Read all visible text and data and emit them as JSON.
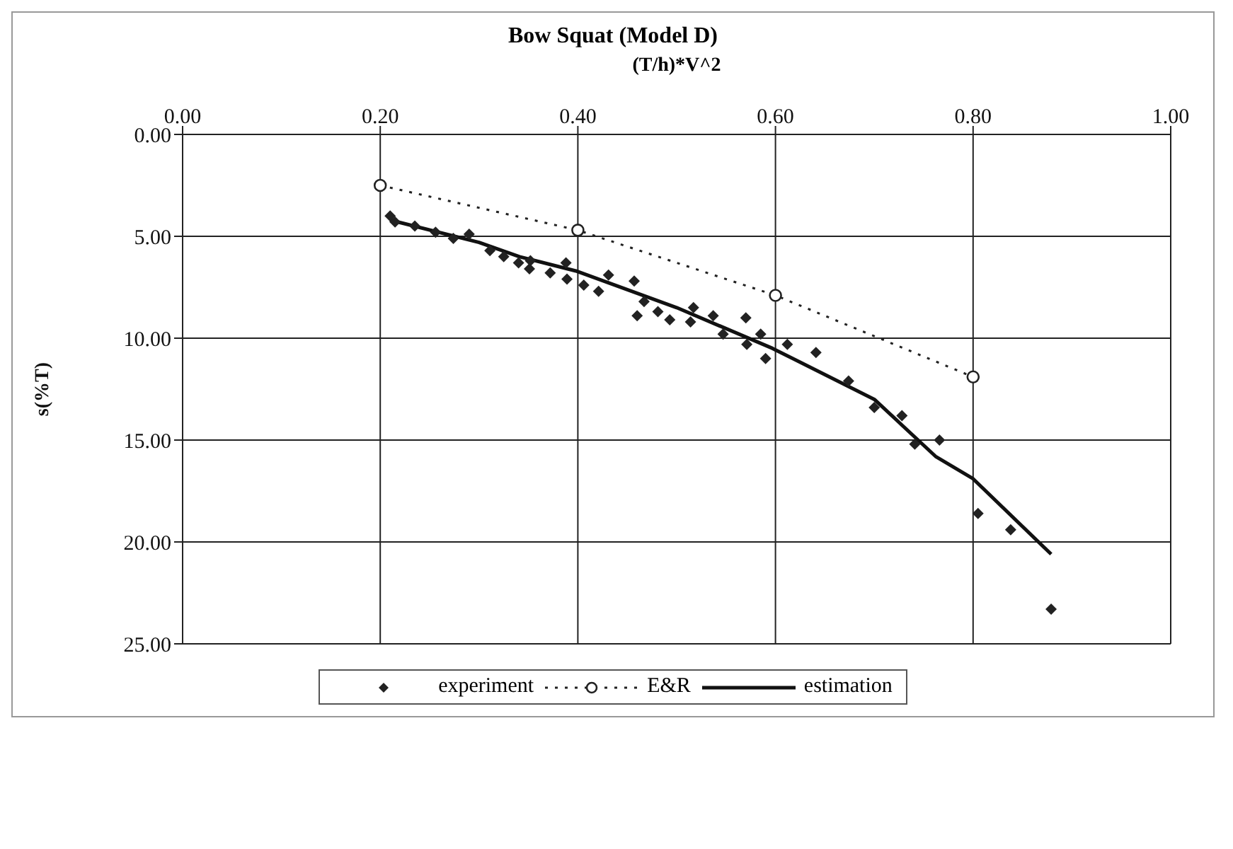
{
  "chart_data": {
    "type": "scatter",
    "title": "Bow Squat (Model D)",
    "xlabel": "(T/h)*V^2",
    "ylabel": "s(%T)",
    "xlim": [
      0,
      1
    ],
    "xticks": [
      {
        "value": 0,
        "label": "0.00"
      },
      {
        "value": 0.2,
        "label": "0.20"
      },
      {
        "value": 0.4,
        "label": "0.40"
      },
      {
        "value": 0.6,
        "label": "0.60"
      },
      {
        "value": 0.8,
        "label": "0.80"
      },
      {
        "value": 1,
        "label": "1.00"
      }
    ],
    "ylim": [
      25,
      0
    ],
    "yticks": [
      {
        "value": 0,
        "label": "0.00"
      },
      {
        "value": 5,
        "label": "5.00"
      },
      {
        "value": 10,
        "label": "10.00"
      },
      {
        "value": 15,
        "label": "15.00"
      },
      {
        "value": 20,
        "label": "20.00"
      },
      {
        "value": 25,
        "label": "25.00"
      }
    ],
    "grid": true,
    "legend": "bottom",
    "series": [
      {
        "name": "experiment",
        "marker": "diamond",
        "color": "#222222",
        "x": [
          0.21,
          0.215,
          0.235,
          0.256,
          0.274,
          0.29,
          0.311,
          0.325,
          0.34,
          0.351,
          0.352,
          0.372,
          0.388,
          0.389,
          0.406,
          0.421,
          0.431,
          0.457,
          0.46,
          0.467,
          0.481,
          0.493,
          0.514,
          0.517,
          0.537,
          0.547,
          0.57,
          0.571,
          0.585,
          0.59,
          0.612,
          0.641,
          0.674,
          0.7,
          0.728,
          0.741,
          0.766,
          0.805,
          0.838,
          0.879
        ],
        "values": [
          4.0,
          4.3,
          4.5,
          4.8,
          5.1,
          4.9,
          5.7,
          6.0,
          6.3,
          6.6,
          6.2,
          6.8,
          6.3,
          7.1,
          7.4,
          7.7,
          6.9,
          7.2,
          8.9,
          8.2,
          8.7,
          9.1,
          9.2,
          8.5,
          8.9,
          9.8,
          9.0,
          10.3,
          9.8,
          11.0,
          10.3,
          10.7,
          12.1,
          13.4,
          13.8,
          15.2,
          15.0,
          18.6,
          19.4,
          23.3
        ]
      },
      {
        "name": "E&R",
        "type": "line",
        "marker": "circle",
        "line_style": "dotted",
        "color": "#222222",
        "x": [
          0.2,
          0.4,
          0.6,
          0.8
        ],
        "values": [
          2.5,
          4.7,
          7.9,
          11.9
        ]
      },
      {
        "name": "estimation",
        "type": "line",
        "marker": "none",
        "line_style": "solid",
        "color": "#111111",
        "x": [
          0.21,
          0.3,
          0.341,
          0.398,
          0.5,
          0.597,
          0.7,
          0.762,
          0.8,
          0.879
        ],
        "values": [
          4.2,
          5.3,
          6.0,
          6.7,
          8.5,
          10.5,
          13.0,
          15.8,
          16.9,
          20.6
        ]
      }
    ]
  }
}
